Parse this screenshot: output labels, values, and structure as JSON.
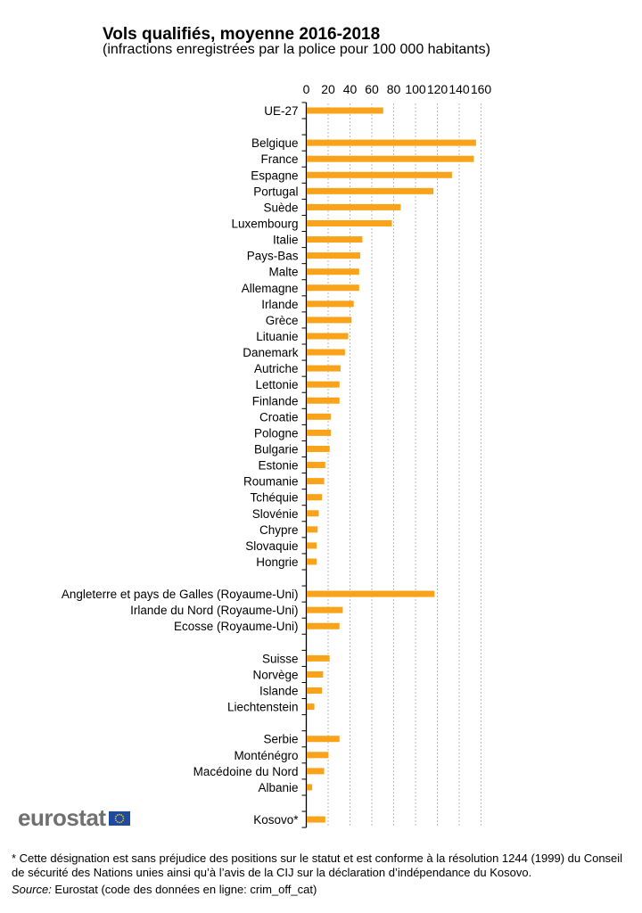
{
  "chart_data": {
    "type": "bar",
    "orientation": "horizontal",
    "title": "Vols qualifiés, moyenne 2016-2018",
    "subtitle": "(infractions enregistrées par la police pour 100 000 habitants)",
    "xlabel": "",
    "ylabel": "",
    "xlim": [
      0,
      160
    ],
    "xticks": [
      "0",
      "20",
      "40",
      "60",
      "80",
      "100",
      "120",
      "140",
      "160"
    ],
    "grid": true,
    "color": "#f9a31b",
    "categories": [
      "UE-27",
      "",
      "Belgique",
      "France",
      "Espagne",
      "Portugal",
      "Suède",
      "Luxembourg",
      "Italie",
      "Pays-Bas",
      "Malte",
      "Allemagne",
      "Irlande",
      "Grèce",
      "Lituanie",
      "Danemark",
      "Autriche",
      "Lettonie",
      "Finlande",
      "Croatie",
      "Pologne",
      "Bulgarie",
      "Estonie",
      "Roumanie",
      "Tchéquie",
      "Slovénie",
      "Chypre",
      "Slovaquie",
      "Hongrie",
      "",
      "Angleterre et pays de Galles (Royaume-Uni)",
      "Irlande du Nord (Royaume-Uni)",
      "Ecosse (Royaume-Uni)",
      "",
      "Suisse",
      "Norvège",
      "Islande",
      "Liechtenstein",
      "",
      "Serbie",
      "Monténégro",
      "Macédoine du Nord",
      "Albanie",
      "",
      "Kosovo*"
    ],
    "values": [
      70,
      null,
      155,
      153,
      133,
      116,
      86,
      78,
      51,
      49,
      48,
      48,
      43,
      41,
      38,
      35,
      31,
      30,
      30,
      22,
      22,
      21,
      17,
      16,
      14,
      11,
      10,
      9,
      9,
      null,
      117,
      33,
      30,
      null,
      21,
      15,
      14,
      7,
      null,
      30,
      20,
      16,
      5,
      null,
      17
    ]
  },
  "logo": {
    "text": "eurostat"
  },
  "footnote": "* Cette désignation est sans préjudice des positions sur le statut et est conforme à la résolution 1244 (1999) du Conseil de sécurité des Nations unies ainsi qu’à l’avis de la CIJ sur la déclaration d’indépendance du Kosovo.",
  "source": {
    "label": "Source:",
    "text": " Eurostat (code des données en ligne: crim_off_cat)"
  }
}
